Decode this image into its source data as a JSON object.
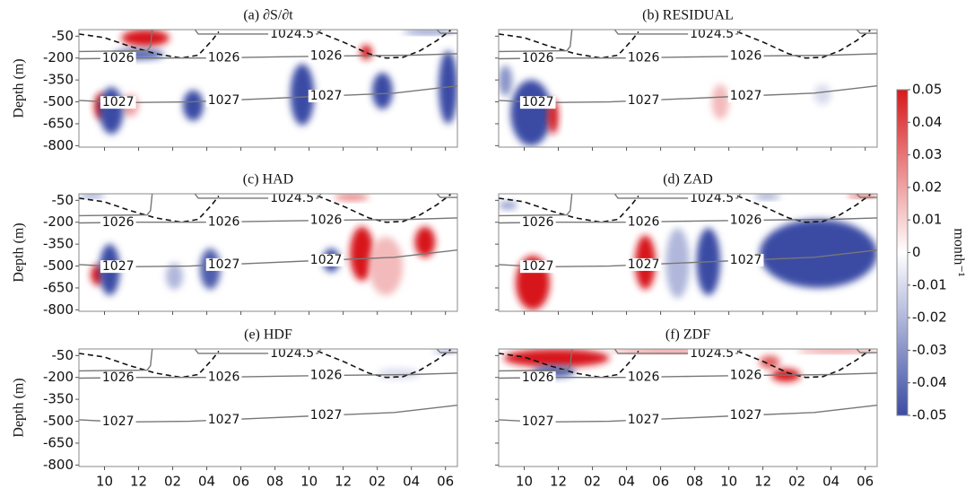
{
  "chart_data": [
    {
      "type": "heatmap",
      "title": "(a) ∂S/∂t",
      "ylabel": "Depth (m)",
      "xlim": [
        -1.5,
        20.7
      ],
      "ylim": [
        -810,
        -5
      ],
      "xticks": [
        0,
        2,
        4,
        6,
        8,
        10,
        12,
        14,
        16,
        18,
        20
      ],
      "yticks": [
        -50,
        -200,
        -350,
        -500,
        -650,
        -800
      ],
      "blobs": [
        {
          "x": [
            1,
            3.8
          ],
          "depth": [
            -5,
            -120
          ],
          "value": 0.05
        },
        {
          "x": [
            0.5,
            3.5
          ],
          "depth": [
            -140,
            -210
          ],
          "value": -0.045
        },
        {
          "x": [
            -0.6,
            0.2
          ],
          "depth": [
            -440,
            -620
          ],
          "value": 0.05
        },
        {
          "x": [
            1,
            2
          ],
          "depth": [
            -450,
            -600
          ],
          "value": 0.02
        },
        {
          "x": [
            -0.3,
            1.1
          ],
          "depth": [
            -400,
            -720
          ],
          "value": -0.05
        },
        {
          "x": [
            4.6,
            5.8
          ],
          "depth": [
            -420,
            -630
          ],
          "value": -0.05
        },
        {
          "x": [
            10.9,
            12.3
          ],
          "depth": [
            -240,
            -660
          ],
          "value": -0.05
        },
        {
          "x": [
            15.7,
            16.9
          ],
          "depth": [
            -300,
            -550
          ],
          "value": -0.05
        },
        {
          "x": [
            19.6,
            20.7
          ],
          "depth": [
            -150,
            -650
          ],
          "value": -0.05
        },
        {
          "x": [
            15,
            15.7
          ],
          "depth": [
            -110,
            -210
          ],
          "value": 0.05
        },
        {
          "x": [
            17.5,
            20.5
          ],
          "depth": [
            -5,
            -35
          ],
          "value": -0.04
        }
      ]
    },
    {
      "type": "heatmap",
      "title": "(b) RESIDUAL",
      "xlim": [
        -1.5,
        20.7
      ],
      "ylim": [
        -810,
        -5
      ],
      "xticks": [
        0,
        2,
        4,
        6,
        8,
        10,
        12,
        14,
        16,
        18,
        20
      ],
      "yticks": [
        -50,
        -200,
        -350,
        -500,
        -650,
        -800
      ],
      "blobs": [
        {
          "x": [
            -0.8,
            1.6
          ],
          "depth": [
            -350,
            -800
          ],
          "value": -0.05
        },
        {
          "x": [
            1.4,
            2
          ],
          "depth": [
            -480,
            -720
          ],
          "value": 0.05
        },
        {
          "x": [
            -1.5,
            -0.7
          ],
          "depth": [
            -250,
            -460
          ],
          "value": -0.03
        },
        {
          "x": [
            11,
            12
          ],
          "depth": [
            -380,
            -620
          ],
          "value": 0.015
        },
        {
          "x": [
            17,
            18
          ],
          "depth": [
            -380,
            -520
          ],
          "value": -0.01
        }
      ]
    },
    {
      "type": "heatmap",
      "title": "(c) HAD",
      "ylabel": "Depth (m)",
      "xlim": [
        -1.5,
        20.7
      ],
      "ylim": [
        -810,
        -5
      ],
      "xticks": [
        0,
        2,
        4,
        6,
        8,
        10,
        12,
        14,
        16,
        18,
        20
      ],
      "yticks": [
        -50,
        -200,
        -350,
        -500,
        -650,
        -800
      ],
      "blobs": [
        {
          "x": [
            -0.8,
            0
          ],
          "depth": [
            -490,
            -630
          ],
          "value": 0.05
        },
        {
          "x": [
            -0.3,
            0.9
          ],
          "depth": [
            -350,
            -700
          ],
          "value": -0.05
        },
        {
          "x": [
            5.6,
            6.8
          ],
          "depth": [
            -380,
            -660
          ],
          "value": -0.045
        },
        {
          "x": [
            3.6,
            4.6
          ],
          "depth": [
            -480,
            -660
          ],
          "value": -0.02
        },
        {
          "x": [
            12.8,
            13.8
          ],
          "depth": [
            -380,
            -540
          ],
          "value": -0.05
        },
        {
          "x": [
            14.4,
            15.8
          ],
          "depth": [
            -230,
            -600
          ],
          "value": 0.05
        },
        {
          "x": [
            18.2,
            19.4
          ],
          "depth": [
            -230,
            -440
          ],
          "value": 0.05
        },
        {
          "x": [
            15.5,
            17.5
          ],
          "depth": [
            -300,
            -700
          ],
          "value": 0.015
        },
        {
          "x": [
            -1.5,
            0
          ],
          "depth": [
            -5,
            -30
          ],
          "value": -0.04
        },
        {
          "x": [
            13.5,
            15.5
          ],
          "depth": [
            -5,
            -50
          ],
          "value": 0.03
        }
      ]
    },
    {
      "type": "heatmap",
      "title": "(d) ZAD",
      "xlim": [
        -1.5,
        20.7
      ],
      "ylim": [
        -810,
        -5
      ],
      "xticks": [
        0,
        2,
        4,
        6,
        8,
        10,
        12,
        14,
        16,
        18,
        20
      ],
      "yticks": [
        -50,
        -200,
        -350,
        -500,
        -650,
        -800
      ],
      "blobs": [
        {
          "x": [
            -0.5,
            1.5
          ],
          "depth": [
            -430,
            -800
          ],
          "value": 0.05
        },
        {
          "x": [
            6.5,
            7.7
          ],
          "depth": [
            -290,
            -660
          ],
          "value": 0.05
        },
        {
          "x": [
            10.1,
            11.5
          ],
          "depth": [
            -240,
            -700
          ],
          "value": -0.05
        },
        {
          "x": [
            8.3,
            9.7
          ],
          "depth": [
            -240,
            -720
          ],
          "value": -0.02
        },
        {
          "x": [
            13.8,
            20.7
          ],
          "depth": [
            -180,
            -650
          ],
          "value": -0.05
        },
        {
          "x": [
            -1.5,
            -0.4
          ],
          "depth": [
            -60,
            -110
          ],
          "value": -0.03
        },
        {
          "x": [
            19,
            20.7
          ],
          "depth": [
            -5,
            -30
          ],
          "value": 0.05
        },
        {
          "x": [
            13.5,
            15
          ],
          "depth": [
            -5,
            -40
          ],
          "value": -0.03
        }
      ]
    },
    {
      "type": "heatmap",
      "title": "(e) HDF",
      "ylabel": "Depth (m)",
      "xlim": [
        -1.5,
        20.7
      ],
      "ylim": [
        -810,
        -5
      ],
      "xticks": [
        {
          "value": 0,
          "label": "10"
        },
        {
          "value": 2,
          "label": "12"
        },
        {
          "value": 4,
          "label": "02"
        },
        {
          "value": 6,
          "label": "04"
        },
        {
          "value": 8,
          "label": "06"
        },
        {
          "value": 10,
          "label": "08"
        },
        {
          "value": 12,
          "label": "10"
        },
        {
          "value": 14,
          "label": "12"
        },
        {
          "value": 16,
          "label": "02"
        },
        {
          "value": 18,
          "label": "04"
        },
        {
          "value": 20,
          "label": "06"
        }
      ],
      "yticks": [
        -50,
        -200,
        -350,
        -500,
        -650,
        -800
      ],
      "blobs": [
        {
          "x": [
            19.3,
            20.7
          ],
          "depth": [
            -5,
            -35
          ],
          "value": -0.025
        },
        {
          "x": [
            16,
            18.5
          ],
          "depth": [
            -140,
            -210
          ],
          "value": -0.01
        }
      ]
    },
    {
      "type": "heatmap",
      "title": "(f) ZDF",
      "xlim": [
        -1.5,
        20.7
      ],
      "ylim": [
        -810,
        -5
      ],
      "xticks": [
        {
          "value": 0,
          "label": "10"
        },
        {
          "value": 2,
          "label": "12"
        },
        {
          "value": 4,
          "label": "02"
        },
        {
          "value": 6,
          "label": "04"
        },
        {
          "value": 8,
          "label": "06"
        },
        {
          "value": 10,
          "label": "08"
        },
        {
          "value": 12,
          "label": "10"
        },
        {
          "value": 14,
          "label": "12"
        },
        {
          "value": 16,
          "label": "02"
        },
        {
          "value": 18,
          "label": "04"
        },
        {
          "value": 20,
          "label": "06"
        }
      ],
      "yticks": [
        -50,
        -200,
        -350,
        -500,
        -650,
        -800
      ],
      "blobs": [
        {
          "x": [
            -1.2,
            5
          ],
          "depth": [
            -5,
            -130
          ],
          "value": 0.05
        },
        {
          "x": [
            0.5,
            3
          ],
          "depth": [
            -120,
            -200
          ],
          "value": -0.045
        },
        {
          "x": [
            5,
            12.5
          ],
          "depth": [
            -5,
            -30
          ],
          "value": 0.04
        },
        {
          "x": [
            14.5,
            16.2
          ],
          "depth": [
            -140,
            -230
          ],
          "value": 0.05
        },
        {
          "x": [
            13.8,
            15
          ],
          "depth": [
            -50,
            -140
          ],
          "value": 0.035
        },
        {
          "x": [
            16,
            20.7
          ],
          "depth": [
            -5,
            -30
          ],
          "value": 0.035
        }
      ]
    }
  ],
  "contours": [
    {
      "level": 1024.5,
      "x": [
        -1.5,
        2.5,
        2.7,
        2.8,
        null,
        5.3,
        5.5,
        12.5,
        12.7,
        null,
        19.5,
        19.7,
        20.7
      ],
      "y": [
        -155,
        -150,
        -120,
        -5,
        null,
        -5,
        -35,
        -35,
        -5,
        null,
        -5,
        -30,
        -30
      ]
    },
    {
      "level": 1026,
      "x": [
        -1.5,
        2,
        6,
        10,
        14,
        18,
        20.7
      ],
      "y": [
        -205,
        -200,
        -200,
        -192,
        -185,
        -180,
        -170
      ]
    },
    {
      "level": 1027,
      "x": [
        -1.5,
        1,
        5,
        9,
        13,
        17,
        20.7
      ],
      "y": [
        -490,
        -505,
        -500,
        -480,
        -460,
        -440,
        -390
      ]
    }
  ],
  "boundary": {
    "x": [
      -1.5,
      0,
      1.5,
      3,
      4.5,
      5.5,
      6.3,
      6.7,
      null,
      12.5,
      14,
      15.5,
      16.5,
      17.5,
      18.5,
      19.5,
      20.3
    ],
    "y": [
      -35,
      -60,
      -120,
      -170,
      -200,
      -180,
      -80,
      -20,
      null,
      -20,
      -90,
      -170,
      -200,
      -195,
      -150,
      -80,
      -10
    ]
  },
  "colorbar": {
    "clim": [
      -0.05,
      0.05
    ],
    "colors": [
      "#3b4ca4",
      "#ffffff",
      "#d7191c"
    ],
    "ticks": [
      0.05,
      0.04,
      0.03,
      0.02,
      0.01,
      0,
      -0.01,
      -0.02,
      -0.03,
      -0.04,
      -0.05
    ],
    "label": "month⁻¹"
  }
}
